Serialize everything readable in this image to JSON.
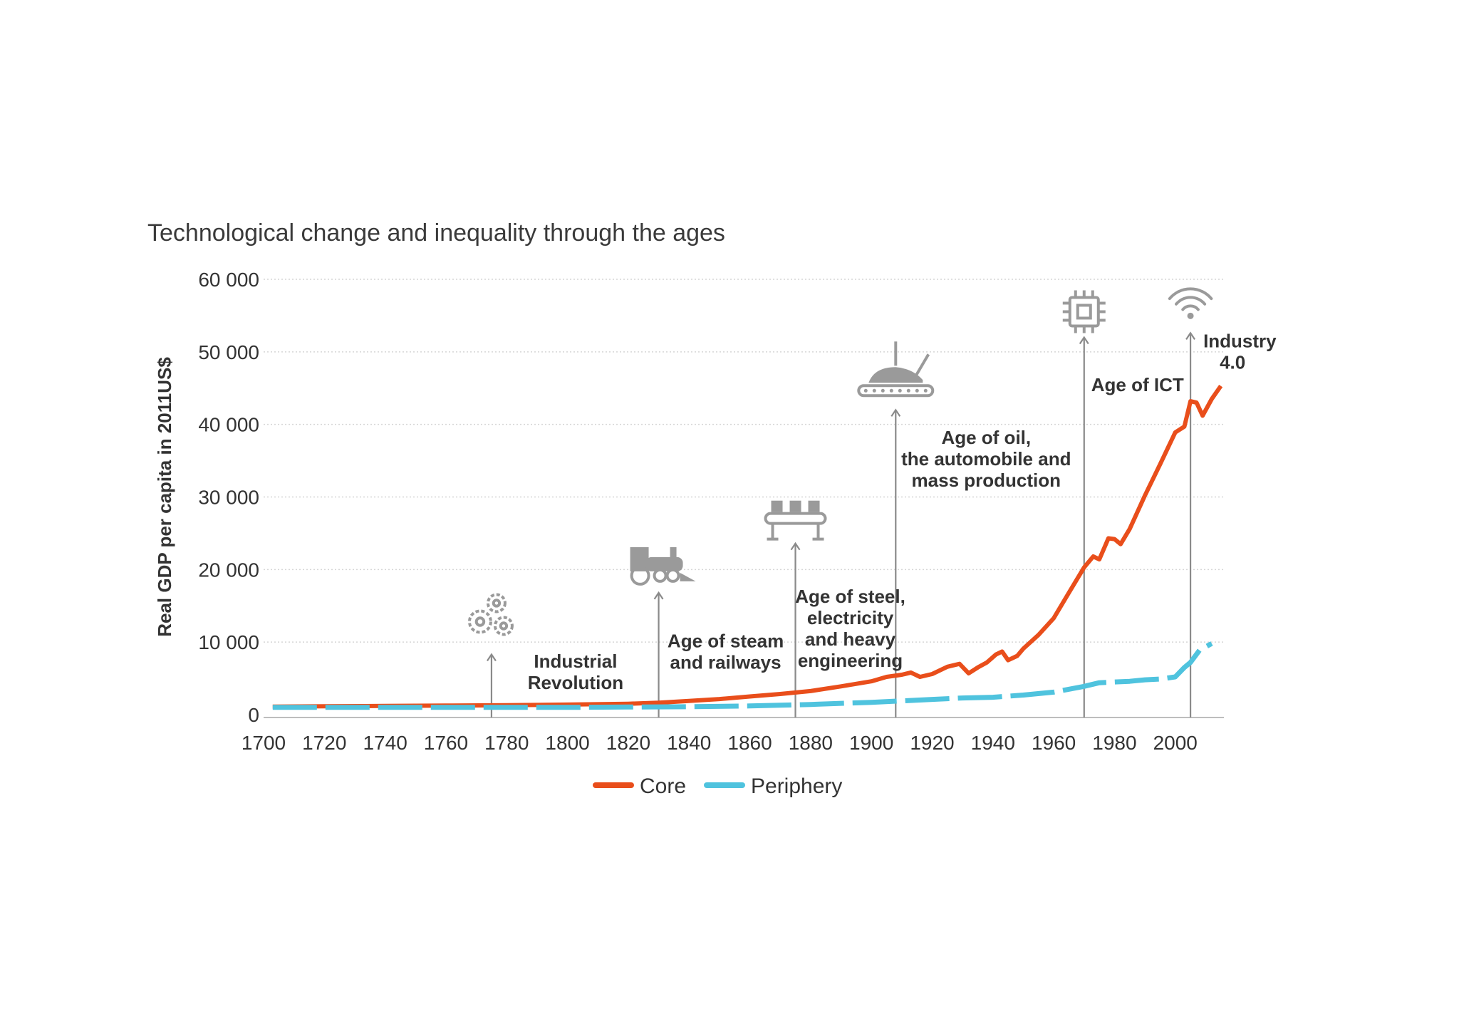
{
  "chart_data": {
    "type": "line",
    "title": "Technological change and inequality through the ages",
    "xlabel": "",
    "ylabel": "Real GDP per capita in 2011US$",
    "xlim": [
      1700,
      2016
    ],
    "ylim": [
      0,
      60000
    ],
    "x_ticks": [
      "1700",
      "1720",
      "1740",
      "1760",
      "1780",
      "1800",
      "1820",
      "1840",
      "1860",
      "1880",
      "1900",
      "1920",
      "1940",
      "1960",
      "1980",
      "2000"
    ],
    "y_ticks": [
      "0",
      "10 000",
      "20 000",
      "30 000",
      "40 000",
      "50 000",
      "60 000"
    ],
    "y_tick_values": [
      0,
      10000,
      20000,
      30000,
      40000,
      50000,
      60000
    ],
    "x_tick_values": [
      1700,
      1720,
      1740,
      1760,
      1780,
      1800,
      1820,
      1840,
      1860,
      1880,
      1900,
      1920,
      1940,
      1960,
      1980,
      2000
    ],
    "legend_position": "bottom",
    "series": [
      {
        "name": "Core",
        "color": "#e94e1b",
        "style": "solid",
        "x": [
          1703,
          1720,
          1740,
          1760,
          1780,
          1800,
          1820,
          1830,
          1840,
          1850,
          1860,
          1870,
          1880,
          1890,
          1900,
          1905,
          1910,
          1913,
          1916,
          1920,
          1925,
          1929,
          1932,
          1935,
          1938,
          1941,
          1943,
          1945,
          1948,
          1950,
          1955,
          1960,
          1965,
          1970,
          1973,
          1975,
          1978,
          1980,
          1982,
          1985,
          1990,
          1995,
          2000,
          2003,
          2005,
          2007,
          2009,
          2012,
          2015
        ],
        "values": [
          1100,
          1150,
          1200,
          1250,
          1300,
          1380,
          1500,
          1650,
          1900,
          2150,
          2500,
          2850,
          3250,
          3900,
          4600,
          5200,
          5500,
          5800,
          5200,
          5600,
          6600,
          7000,
          5700,
          6500,
          7200,
          8300,
          8700,
          7500,
          8100,
          9100,
          11000,
          13300,
          16800,
          20300,
          21800,
          21400,
          24300,
          24200,
          23500,
          25600,
          30200,
          34500,
          38900,
          39700,
          43200,
          43000,
          41200,
          43500,
          45300
        ]
      },
      {
        "name": "Periphery",
        "color": "#4fc3de",
        "style": "dashed",
        "x": [
          1703,
          1720,
          1740,
          1760,
          1780,
          1800,
          1820,
          1840,
          1860,
          1880,
          1900,
          1910,
          1920,
          1930,
          1940,
          1950,
          1960,
          1970,
          1975,
          1980,
          1985,
          1990,
          1995,
          2000,
          2003,
          2005,
          2008,
          2012
        ],
        "values": [
          1000,
          1000,
          1000,
          1000,
          1000,
          1000,
          1050,
          1100,
          1200,
          1400,
          1700,
          1900,
          2100,
          2300,
          2400,
          2700,
          3100,
          3900,
          4400,
          4500,
          4600,
          4800,
          4900,
          5200,
          6500,
          7200,
          8900,
          9800
        ]
      }
    ],
    "annotations": [
      {
        "lines": [
          "Industrial",
          "Revolution"
        ],
        "year": 1775,
        "arrow_top_value": 8300,
        "icon": "gears-icon"
      },
      {
        "lines": [
          "Age of steam",
          "and railways"
        ],
        "year": 1830,
        "arrow_top_value": 16800,
        "icon": "locomotive-icon"
      },
      {
        "lines": [
          "Age of steel,",
          "electricity",
          "and heavy",
          "engineering"
        ],
        "year": 1875,
        "arrow_top_value": 23600,
        "icon": "assembly-line-icon"
      },
      {
        "lines": [
          "Age of oil,",
          "the automobile and",
          "mass production"
        ],
        "year": 1908,
        "arrow_top_value": 42000,
        "icon": "car-factory-icon"
      },
      {
        "lines": [
          "Age of ICT"
        ],
        "year": 1970,
        "arrow_top_value": 52000,
        "icon": "microchip-icon"
      },
      {
        "lines": [
          "Industry",
          "4.0"
        ],
        "year": 2005,
        "arrow_top_value": 52600,
        "icon": "wifi-icon"
      }
    ]
  }
}
